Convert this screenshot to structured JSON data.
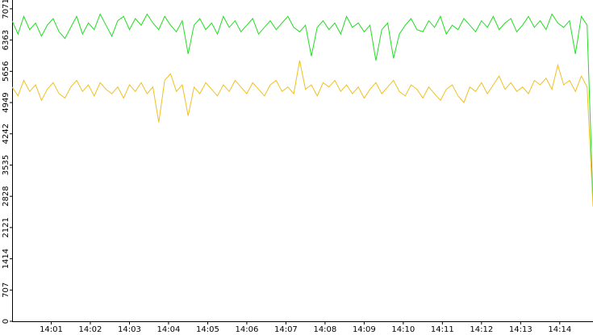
{
  "chart_data": {
    "type": "line",
    "x": [
      0,
      0.15,
      0.3,
      0.45,
      0.6,
      0.75,
      0.9,
      1.05,
      1.2,
      1.35,
      1.5,
      1.65,
      1.8,
      1.95,
      2.1,
      2.25,
      2.4,
      2.55,
      2.7,
      2.85,
      3,
      3.15,
      3.3,
      3.45,
      3.6,
      3.75,
      3.9,
      4.05,
      4.2,
      4.35,
      4.5,
      4.65,
      4.8,
      4.95,
      5.1,
      5.25,
      5.4,
      5.55,
      5.7,
      5.85,
      6,
      6.15,
      6.3,
      6.45,
      6.6,
      6.75,
      6.9,
      7.05,
      7.2,
      7.35,
      7.5,
      7.65,
      7.8,
      7.95,
      8.1,
      8.25,
      8.4,
      8.55,
      8.7,
      8.85,
      9,
      9.15,
      9.3,
      9.45,
      9.6,
      9.75,
      9.9,
      10.05,
      10.2,
      10.35,
      10.5,
      10.65,
      10.8,
      10.95,
      11.1,
      11.25,
      11.4,
      11.55,
      11.7,
      11.85,
      12,
      12.15,
      12.3,
      12.45,
      12.6,
      12.75,
      12.9,
      13.05,
      13.2,
      13.35,
      13.5,
      13.65,
      13.8,
      13.95,
      14.1,
      14.25,
      14.4,
      14.55,
      14.7,
      14.85
    ],
    "series": [
      {
        "color": "#22dd22",
        "values": [
          6800,
          6500,
          6900,
          6600,
          6750,
          6450,
          6700,
          6850,
          6550,
          6400,
          6650,
          6900,
          6500,
          6750,
          6600,
          6950,
          6700,
          6450,
          6800,
          6900,
          6600,
          6850,
          6700,
          6950,
          6750,
          6600,
          6900,
          6700,
          6550,
          6800,
          6050,
          6700,
          6850,
          6600,
          6750,
          6500,
          6900,
          6650,
          6800,
          6550,
          6700,
          6850,
          6500,
          6650,
          6800,
          6600,
          6750,
          6900,
          6650,
          6550,
          6700,
          6000,
          6650,
          6800,
          6600,
          6750,
          6500,
          6900,
          6650,
          6750,
          6550,
          6700,
          5900,
          6600,
          6750,
          5950,
          6500,
          6700,
          6850,
          6600,
          6550,
          6800,
          6650,
          6900,
          6500,
          6700,
          6600,
          6850,
          6700,
          6550,
          6800,
          6650,
          6900,
          6600,
          6750,
          6850,
          6550,
          6700,
          6900,
          6650,
          6800,
          6600,
          6950,
          6750,
          6650,
          6800,
          6050,
          6900,
          6700,
          2700
        ]
      },
      {
        "color": "#f0c020",
        "values": [
          5300,
          5100,
          5450,
          5200,
          5350,
          5000,
          5250,
          5400,
          5150,
          5050,
          5300,
          5450,
          5200,
          5350,
          5100,
          5400,
          5250,
          5150,
          5300,
          5050,
          5350,
          5200,
          5400,
          5150,
          5300,
          4500,
          5450,
          5600,
          5200,
          5350,
          4650,
          5300,
          5150,
          5400,
          5250,
          5100,
          5350,
          5200,
          5450,
          5300,
          5150,
          5400,
          5250,
          5100,
          5350,
          5450,
          5200,
          5300,
          5150,
          5900,
          5250,
          5350,
          5100,
          5400,
          5300,
          5450,
          5200,
          5350,
          5150,
          5300,
          5050,
          5250,
          5400,
          5150,
          5300,
          5450,
          5200,
          5100,
          5350,
          5250,
          5050,
          5300,
          5150,
          5000,
          5250,
          5350,
          5100,
          4950,
          5300,
          5200,
          5400,
          5150,
          5350,
          5550,
          5250,
          5400,
          5200,
          5300,
          5150,
          5450,
          5350,
          5500,
          5250,
          5800,
          5350,
          5450,
          5200,
          5550,
          5300,
          2600
        ]
      }
    ],
    "xlim": [
      0,
      14.85
    ],
    "xticks": [
      {
        "value": 1,
        "label": "14:01"
      },
      {
        "value": 2,
        "label": "14:02"
      },
      {
        "value": 3,
        "label": "14:03"
      },
      {
        "value": 4,
        "label": "14:04"
      },
      {
        "value": 5,
        "label": "14:05"
      },
      {
        "value": 6,
        "label": "14:06"
      },
      {
        "value": 7,
        "label": "14:07"
      },
      {
        "value": 8,
        "label": "14:08"
      },
      {
        "value": 9,
        "label": "14:09"
      },
      {
        "value": 10,
        "label": "14:10"
      },
      {
        "value": 11,
        "label": "14:11"
      },
      {
        "value": 12,
        "label": "14:12"
      },
      {
        "value": 13,
        "label": "14:13"
      },
      {
        "value": 14,
        "label": "14:14"
      }
    ],
    "ylim": [
      0,
      7270
    ],
    "yticks": [
      0,
      707,
      1414,
      2121,
      2828,
      3535,
      4242,
      4949,
      5656,
      6363,
      7071
    ]
  }
}
